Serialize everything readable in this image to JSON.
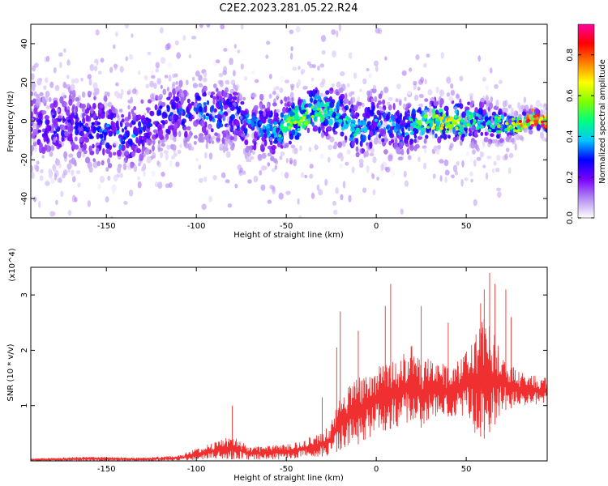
{
  "title": "C2E2.2023.281.05.22.R24",
  "chart_data": [
    {
      "type": "heatmap",
      "xlabel": "Height of straight line (km)",
      "ylabel": "Frequency (Hz)",
      "xlim": [
        -192,
        95
      ],
      "ylim": [
        -50,
        50
      ],
      "x_ticks": [
        -150,
        -100,
        -50,
        0,
        50
      ],
      "y_ticks": [
        -40,
        -20,
        0,
        20,
        40
      ],
      "colorbar": {
        "label": "Normalized spectral amplitude",
        "range": [
          0.0,
          0.95
        ],
        "ticks": [
          0.0,
          0.2,
          0.4,
          0.6,
          0.8
        ],
        "tick_labels": [
          "0.0",
          "0.2",
          "0.4",
          "0.6",
          "0.8"
        ],
        "colors": [
          "#ffffff",
          "#b38cf0",
          "#7a00ff",
          "#0000ff",
          "#00c8ff",
          "#00ff80",
          "#80ff00",
          "#ffff00",
          "#ff8000",
          "#ff0000",
          "#ff00a0"
        ]
      },
      "ridge": [
        {
          "x": -190,
          "y": -3,
          "spread": 14,
          "amp": 0.2
        },
        {
          "x": -170,
          "y": -2,
          "spread": 14,
          "amp": 0.22
        },
        {
          "x": -150,
          "y": -5,
          "spread": 13,
          "amp": 0.28
        },
        {
          "x": -140,
          "y": -10,
          "spread": 12,
          "amp": 0.3
        },
        {
          "x": -120,
          "y": 2,
          "spread": 11,
          "amp": 0.25
        },
        {
          "x": -100,
          "y": 5,
          "spread": 11,
          "amp": 0.28
        },
        {
          "x": -80,
          "y": 3,
          "spread": 11,
          "amp": 0.3
        },
        {
          "x": -60,
          "y": -5,
          "spread": 11,
          "amp": 0.3
        },
        {
          "x": -45,
          "y": 0,
          "spread": 8,
          "amp": 0.5
        },
        {
          "x": -35,
          "y": 5,
          "spread": 9,
          "amp": 0.45
        },
        {
          "x": -25,
          "y": 5,
          "spread": 10,
          "amp": 0.4
        },
        {
          "x": -10,
          "y": -5,
          "spread": 10,
          "amp": 0.35
        },
        {
          "x": 0,
          "y": 0,
          "spread": 11,
          "amp": 0.3
        },
        {
          "x": 15,
          "y": -5,
          "spread": 10,
          "amp": 0.3
        },
        {
          "x": 25,
          "y": 0,
          "spread": 7,
          "amp": 0.5
        },
        {
          "x": 40,
          "y": 0,
          "spread": 7,
          "amp": 0.55
        },
        {
          "x": 60,
          "y": 0,
          "spread": 8,
          "amp": 0.35
        },
        {
          "x": 75,
          "y": -3,
          "spread": 4,
          "amp": 0.5
        },
        {
          "x": 85,
          "y": 0,
          "spread": 3,
          "amp": 0.8
        },
        {
          "x": 95,
          "y": 0,
          "spread": 3,
          "amp": 0.75
        }
      ]
    },
    {
      "type": "line",
      "xlabel": "Height of straight line (km)",
      "ylabel": "SNR (10 * v/v)",
      "y_multiplier": "(x10^4)",
      "xlim": [
        -192,
        95
      ],
      "ylim": [
        0,
        3.5
      ],
      "x_ticks": [
        -150,
        -100,
        -50,
        0,
        50
      ],
      "y_ticks": [
        1,
        2,
        3
      ],
      "color": "#f03030",
      "envelope": [
        {
          "x": -192,
          "low": 0.0,
          "high": 0.04
        },
        {
          "x": -160,
          "low": 0.0,
          "high": 0.08
        },
        {
          "x": -130,
          "low": 0.0,
          "high": 0.06
        },
        {
          "x": -110,
          "low": 0.0,
          "high": 0.1
        },
        {
          "x": -100,
          "low": 0.01,
          "high": 0.22
        },
        {
          "x": -90,
          "low": 0.02,
          "high": 0.35
        },
        {
          "x": -80,
          "low": 0.03,
          "high": 0.45
        },
        {
          "x": -70,
          "low": 0.02,
          "high": 0.25
        },
        {
          "x": -60,
          "low": 0.02,
          "high": 0.28
        },
        {
          "x": -50,
          "low": 0.03,
          "high": 0.3
        },
        {
          "x": -40,
          "low": 0.05,
          "high": 0.4
        },
        {
          "x": -30,
          "low": 0.08,
          "high": 0.5
        },
        {
          "x": -25,
          "low": 0.1,
          "high": 0.7
        },
        {
          "x": -20,
          "low": 0.2,
          "high": 1.2
        },
        {
          "x": -10,
          "low": 0.3,
          "high": 1.5
        },
        {
          "x": 0,
          "low": 0.5,
          "high": 1.7
        },
        {
          "x": 10,
          "low": 0.6,
          "high": 1.8
        },
        {
          "x": 20,
          "low": 0.7,
          "high": 2.1
        },
        {
          "x": 25,
          "low": 0.6,
          "high": 1.8
        },
        {
          "x": 30,
          "low": 0.7,
          "high": 1.9
        },
        {
          "x": 40,
          "low": 0.8,
          "high": 1.7
        },
        {
          "x": 50,
          "low": 0.8,
          "high": 2.0
        },
        {
          "x": 55,
          "low": 0.5,
          "high": 2.3
        },
        {
          "x": 60,
          "low": 0.4,
          "high": 2.6
        },
        {
          "x": 65,
          "low": 0.6,
          "high": 2.4
        },
        {
          "x": 70,
          "low": 0.9,
          "high": 1.9
        },
        {
          "x": 80,
          "low": 1.0,
          "high": 1.6
        },
        {
          "x": 95,
          "low": 1.0,
          "high": 1.5
        }
      ],
      "spikes": [
        {
          "x": -80,
          "y": 1.0
        },
        {
          "x": -30,
          "y": 1.15
        },
        {
          "x": -22,
          "y": 2.05
        },
        {
          "x": -20,
          "y": 2.7
        },
        {
          "x": -10,
          "y": 2.35
        },
        {
          "x": 5,
          "y": 2.8
        },
        {
          "x": 8,
          "y": 3.2
        },
        {
          "x": 25,
          "y": 2.8
        },
        {
          "x": 40,
          "y": 2.5
        },
        {
          "x": 58,
          "y": 2.85
        },
        {
          "x": 60,
          "y": 3.1
        },
        {
          "x": 63,
          "y": 3.4
        },
        {
          "x": 66,
          "y": 3.2
        },
        {
          "x": 72,
          "y": 3.1
        },
        {
          "x": 75,
          "y": 2.6
        }
      ]
    }
  ]
}
